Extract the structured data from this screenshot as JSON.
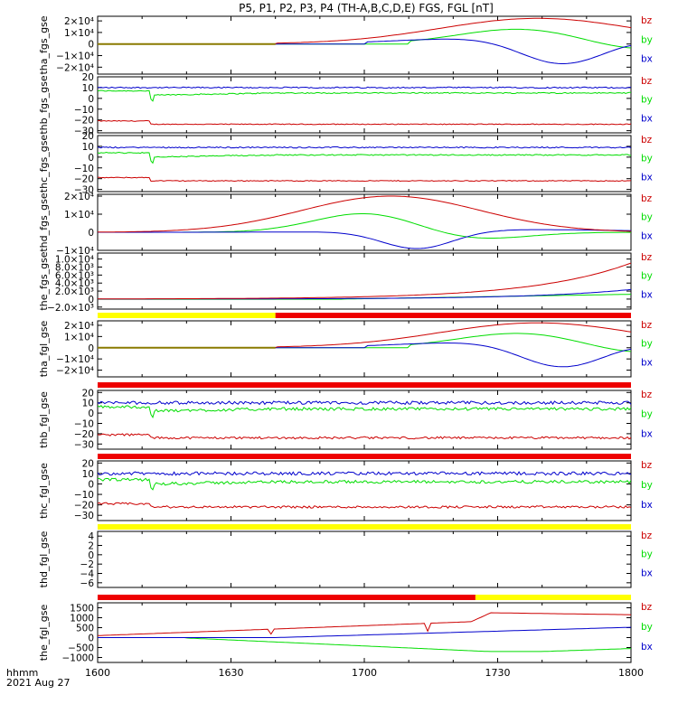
{
  "chart_data": {
    "type": "line",
    "title": "P5, P1, P2, P3, P4 (TH-A,B,C,D,E) FGS, FGL [nT]",
    "colors": {
      "bz": "#cc0000",
      "by": "#00dd00",
      "bx": "#0000cc",
      "yellow": "#ffff00",
      "red": "#ee0000",
      "olive": "#8a7a00"
    },
    "legend": [
      "bz",
      "by",
      "bx"
    ],
    "x_axis": {
      "ticks": [
        "1600",
        "1630",
        "1700",
        "1730",
        "1800"
      ],
      "label_line1": "hhmm",
      "label_line2": "2021 Aug 27",
      "range_minutes": [
        0,
        120
      ]
    },
    "panels": [
      {
        "ylabel": "tha_fgs_gse",
        "ylim": [
          -26000,
          24000
        ],
        "pattern": "big_late",
        "bar": null,
        "ticks": [
          {
            "v": 20000,
            "l": "2×10⁴"
          },
          {
            "v": 10000,
            "l": "1×10⁴"
          },
          {
            "v": 0,
            "l": "0"
          },
          {
            "v": -10000,
            "l": "−1×10⁴"
          },
          {
            "v": -20000,
            "l": "−2×10⁴"
          }
        ]
      },
      {
        "ylabel": "thb_fgs_gse",
        "ylim": [
          -32,
          20
        ],
        "pattern": "steady",
        "bar": null,
        "levels": {
          "bx": 10,
          "by": 5,
          "bz": -24
        },
        "ticks": [
          {
            "v": 20,
            "l": "20"
          },
          {
            "v": 10,
            "l": "10"
          },
          {
            "v": 0,
            "l": "0"
          },
          {
            "v": -10,
            "l": "−10"
          },
          {
            "v": -20,
            "l": "−20"
          },
          {
            "v": -30,
            "l": "−30"
          }
        ]
      },
      {
        "ylabel": "thc_fgs_gse",
        "ylim": [
          -32,
          20
        ],
        "pattern": "steady",
        "bar": null,
        "levels": {
          "bx": 9,
          "by": 2,
          "bz": -22
        },
        "ticks": [
          {
            "v": 20,
            "l": "20"
          },
          {
            "v": 10,
            "l": "10"
          },
          {
            "v": 0,
            "l": "0"
          },
          {
            "v": -10,
            "l": "−10"
          },
          {
            "v": -20,
            "l": "−20"
          },
          {
            "v": -30,
            "l": "−30"
          }
        ]
      },
      {
        "ylabel": "thd_fgs_gse",
        "ylim": [
          -10000,
          21000
        ],
        "pattern": "big_mid",
        "bar": null,
        "ticks": [
          {
            "v": 20000,
            "l": "2×10⁴"
          },
          {
            "v": 10000,
            "l": "1×10⁴"
          },
          {
            "v": 0,
            "l": "0"
          },
          {
            "v": -10000,
            "l": "−1×10⁴"
          }
        ]
      },
      {
        "ylabel": "the_fgs_gse",
        "ylim": [
          -2500,
          11500
        ],
        "pattern": "rise",
        "bar": null,
        "ticks": [
          {
            "v": 10000,
            "l": "1.0×10⁴"
          },
          {
            "v": 8000,
            "l": "8.0×10³"
          },
          {
            "v": 6000,
            "l": "6.0×10³"
          },
          {
            "v": 4000,
            "l": "4.0×10³"
          },
          {
            "v": 2000,
            "l": "2.0×10³"
          },
          {
            "v": 0,
            "l": "0"
          },
          {
            "v": -2000,
            "l": "−2.0×10³"
          }
        ]
      },
      {
        "ylabel": "tha_fgl_gse",
        "ylim": [
          -26000,
          24000
        ],
        "pattern": "big_late",
        "bar": [
          {
            "from": 0,
            "to": 40,
            "color": "yellow"
          },
          {
            "from": 40,
            "to": 120,
            "color": "red"
          }
        ],
        "ticks": [
          {
            "v": 20000,
            "l": "2×10⁴"
          },
          {
            "v": 10000,
            "l": "1×10⁴"
          },
          {
            "v": 0,
            "l": "0"
          },
          {
            "v": -10000,
            "l": "−1×10⁴"
          },
          {
            "v": -20000,
            "l": "−2×10⁴"
          }
        ]
      },
      {
        "ylabel": "thb_fgl_gse",
        "ylim": [
          -35,
          22
        ],
        "pattern": "steady_noisy",
        "bar": [
          {
            "from": 0,
            "to": 120,
            "color": "red"
          }
        ],
        "levels": {
          "bx": 10,
          "by": 4,
          "bz": -24
        },
        "ticks": [
          {
            "v": 20,
            "l": "20"
          },
          {
            "v": 10,
            "l": "10"
          },
          {
            "v": 0,
            "l": "0"
          },
          {
            "v": -10,
            "l": "−10"
          },
          {
            "v": -20,
            "l": "−20"
          },
          {
            "v": -30,
            "l": "−30"
          }
        ]
      },
      {
        "ylabel": "thc_fgl_gse",
        "ylim": [
          -35,
          22
        ],
        "pattern": "steady_noisy",
        "bar": [
          {
            "from": 0,
            "to": 120,
            "color": "red"
          }
        ],
        "levels": {
          "bx": 10,
          "by": 2,
          "bz": -22
        },
        "ticks": [
          {
            "v": 20,
            "l": "20"
          },
          {
            "v": 10,
            "l": "10"
          },
          {
            "v": 0,
            "l": "0"
          },
          {
            "v": -10,
            "l": "−10"
          },
          {
            "v": -20,
            "l": "−20"
          },
          {
            "v": -30,
            "l": "−30"
          }
        ]
      },
      {
        "ylabel": "thd_fgl_gse",
        "ylim": [
          -7,
          5
        ],
        "pattern": "empty",
        "bar": [
          {
            "from": 0,
            "to": 120,
            "color": "yellow"
          }
        ],
        "ticks": [
          {
            "v": 4,
            "l": "4"
          },
          {
            "v": 2,
            "l": "2"
          },
          {
            "v": 0,
            "l": "0"
          },
          {
            "v": -2,
            "l": "−2"
          },
          {
            "v": -4,
            "l": "−4"
          },
          {
            "v": -6,
            "l": "−6"
          }
        ]
      },
      {
        "ylabel": "the_fgl_gse",
        "ylim": [
          -1250,
          1750
        ],
        "pattern": "fgl_e",
        "bar": [
          {
            "from": 0,
            "to": 85,
            "color": "red"
          },
          {
            "from": 85,
            "to": 120,
            "color": "yellow"
          }
        ],
        "ticks": [
          {
            "v": 1500,
            "l": "1500"
          },
          {
            "v": 1000,
            "l": "1000"
          },
          {
            "v": 500,
            "l": "500"
          },
          {
            "v": 0,
            "l": "0"
          },
          {
            "v": -500,
            "l": "−500"
          },
          {
            "v": -1000,
            "l": "−1000"
          }
        ]
      }
    ]
  }
}
